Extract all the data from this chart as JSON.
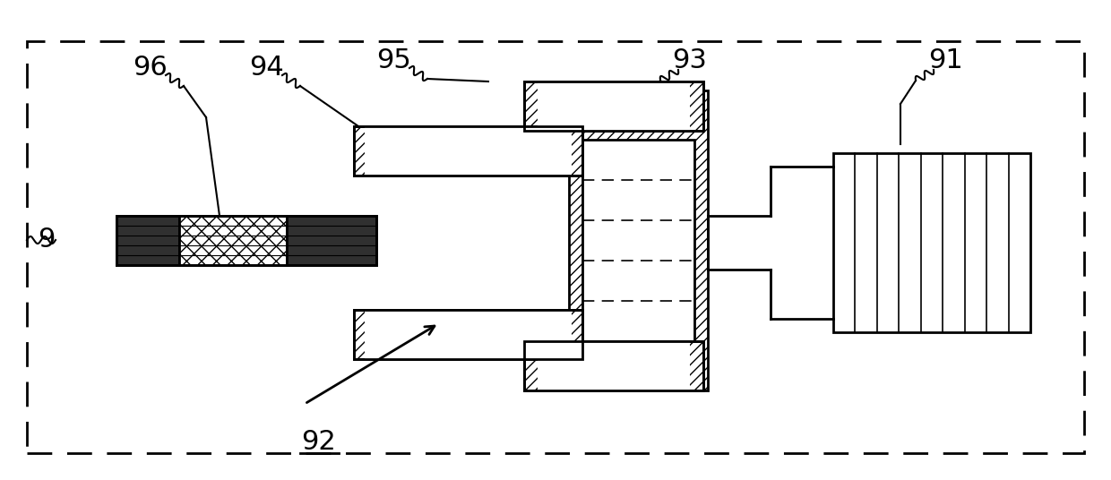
{
  "bg_color": "#ffffff",
  "lw": 2.0,
  "fig_w": 12.4,
  "fig_h": 5.36
}
